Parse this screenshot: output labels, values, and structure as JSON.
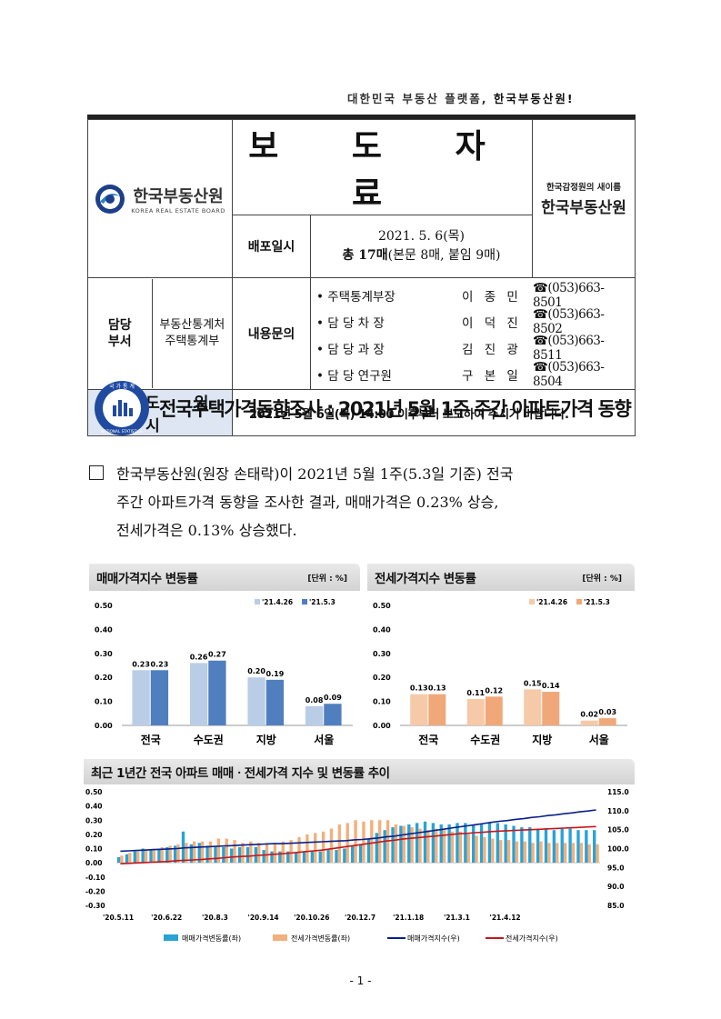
{
  "tagline": {
    "pre": "대한민국 부동산 플랫폼, ",
    "em": "한국부동산원!"
  },
  "header": {
    "logo_name": "한국부동산원",
    "logo_sub": "KOREA REAL ESTATE BOARD",
    "title": "보 도 자 료",
    "dist_label": "배포일시",
    "dist_date": "2021. 5. 6(목)",
    "pages_bold": "총 17매",
    "pages_rest": "(본문 8매, 붙임 9매)",
    "rename_small": "한국감정원의 새이름",
    "rename_big": "한국부동산원",
    "dept_label": "담당\n부서",
    "dept_name": "부동산통계처\n주택통계부",
    "contact_label": "내용문의",
    "contacts": [
      {
        "role": "• 주택통계부장",
        "name": "이 종 민",
        "tel": "☎(053)663-8501"
      },
      {
        "role": "• 담 당 차  장",
        "name": "이 덕 진",
        "tel": "☎(053)663-8502"
      },
      {
        "role": "• 담 당 과  장",
        "name": "김 진 광",
        "tel": "☎(053)663-8511"
      },
      {
        "role": "• 담 당 연구원",
        "name": "구 본 일",
        "tel": "☎(053)663-8504"
      }
    ],
    "release_label": "보 도 일 시",
    "release_text": "2021년 5월 6일(목) 14:00 이후부터 보도하여 주시기 바랍니다."
  },
  "seal_text": {
    "top": "국 가 통 계",
    "bottom": "NATIONAL STATISTICS"
  },
  "headline": "전국주택가격동향조사 : 2021년 5월 1주 주간 아파트가격 동향",
  "body": [
    "한국부동산원(원장 손태락)이 2021년 5월 1주(5.3일 기준) 전국",
    "주간 아파트가격 동향을 조사한 결과, 매매가격은 0.23% 상승,",
    "전세가격은 0.13% 상승했다."
  ],
  "colors": {
    "sale_prev": "#b9cde6",
    "sale_cur": "#4f7fbf",
    "jeonse_prev": "#f6c9a8",
    "jeonse_cur": "#f0a878",
    "sale_index": "#0b1f8a",
    "jeonse_index": "#c4161c",
    "sale_rate": "#29a3d6",
    "jeonse_rate": "#f2b07c"
  },
  "chart_data": [
    {
      "type": "bar",
      "title": "매매가격지수 변동률",
      "unit": "[단위 : %]",
      "categories": [
        "전국",
        "수도권",
        "지방",
        "서울"
      ],
      "series": [
        {
          "name": "'21.4.26",
          "values": [
            0.23,
            0.26,
            0.2,
            0.08
          ]
        },
        {
          "name": "'21.5.3",
          "values": [
            0.23,
            0.27,
            0.19,
            0.09
          ]
        }
      ],
      "ylim": [
        0,
        0.5
      ],
      "yticks": [
        "0.00",
        "0.10",
        "0.20",
        "0.30",
        "0.40",
        "0.50"
      ]
    },
    {
      "type": "bar",
      "title": "전세가격지수 변동률",
      "unit": "[단위 : %]",
      "categories": [
        "전국",
        "수도권",
        "지방",
        "서울"
      ],
      "series": [
        {
          "name": "'21.4.26",
          "values": [
            0.13,
            0.11,
            0.15,
            0.02
          ]
        },
        {
          "name": "'21.5.3",
          "values": [
            0.13,
            0.12,
            0.14,
            0.03
          ]
        }
      ],
      "ylim": [
        0,
        0.5
      ],
      "yticks": [
        "0.00",
        "0.10",
        "0.20",
        "0.30",
        "0.40",
        "0.50"
      ]
    },
    {
      "type": "bar+line",
      "title": "최근 1년간 전국 아파트 매매ㆍ전세가격 지수 및 변동률 추이",
      "x_ticks": [
        "'20.5.11",
        "'20.6.22",
        "'20.8.3",
        "'20.9.14",
        "'20.10.26",
        "'20.12.7",
        "'21.1.18",
        "'21.3.1",
        "'21.4.12"
      ],
      "y_left_ticks": [
        "0.50",
        "0.40",
        "0.30",
        "0.20",
        "0.10",
        "0.00",
        "-0.10",
        "-0.20",
        "-0.30"
      ],
      "y_left_lim": [
        -0.3,
        0.5
      ],
      "y_right_ticks": [
        "115.0",
        "110.0",
        "105.0",
        "100.0",
        "95.0",
        "90.0",
        "85.0"
      ],
      "y_right_lim": [
        85,
        115
      ],
      "series": [
        {
          "name": "매매가격변동률(좌)",
          "kind": "bar",
          "values": [
            0.04,
            0.06,
            0.08,
            0.1,
            0.09,
            0.1,
            0.11,
            0.12,
            0.22,
            0.13,
            0.14,
            0.12,
            0.12,
            0.11,
            0.1,
            0.11,
            0.11,
            0.11,
            0.09,
            0.08,
            0.08,
            0.08,
            0.07,
            0.08,
            0.08,
            0.08,
            0.09,
            0.09,
            0.1,
            0.12,
            0.13,
            0.17,
            0.21,
            0.23,
            0.25,
            0.26,
            0.27,
            0.28,
            0.29,
            0.28,
            0.27,
            0.27,
            0.28,
            0.28,
            0.27,
            0.27,
            0.28,
            0.28,
            0.27,
            0.26,
            0.25,
            0.25,
            0.24,
            0.24,
            0.23,
            0.24,
            0.24,
            0.23,
            0.23,
            0.23
          ]
        },
        {
          "name": "전세가격변동률(좌)",
          "kind": "bar",
          "values": [
            0.05,
            0.07,
            0.08,
            0.09,
            0.1,
            0.11,
            0.12,
            0.13,
            0.14,
            0.15,
            0.15,
            0.15,
            0.17,
            0.17,
            0.16,
            0.14,
            0.15,
            0.14,
            0.14,
            0.14,
            0.15,
            0.16,
            0.18,
            0.2,
            0.21,
            0.22,
            0.24,
            0.27,
            0.28,
            0.3,
            0.29,
            0.3,
            0.3,
            0.3,
            0.27,
            0.26,
            0.25,
            0.24,
            0.23,
            0.24,
            0.23,
            0.22,
            0.22,
            0.2,
            0.19,
            0.18,
            0.17,
            0.16,
            0.16,
            0.15,
            0.15,
            0.14,
            0.15,
            0.14,
            0.14,
            0.14,
            0.14,
            0.14,
            0.13,
            0.13
          ]
        },
        {
          "name": "매매가격지수(우)",
          "kind": "line",
          "values": [
            99.3,
            99.4,
            99.5,
            99.6,
            99.7,
            99.8,
            99.9,
            100.0,
            100.2,
            100.3,
            100.4,
            100.5,
            100.6,
            100.7,
            100.8,
            100.9,
            101.0,
            101.1,
            101.2,
            101.3,
            101.3,
            101.4,
            101.5,
            101.6,
            101.7,
            101.8,
            101.9,
            102.0,
            102.1,
            102.3,
            102.4,
            102.6,
            102.8,
            103.1,
            103.3,
            103.6,
            103.9,
            104.2,
            104.5,
            104.8,
            105.1,
            105.4,
            105.7,
            106.0,
            106.3,
            106.6,
            106.9,
            107.2,
            107.4,
            107.7,
            107.9,
            108.2,
            108.4,
            108.7,
            108.9,
            109.2,
            109.4,
            109.7,
            109.9,
            110.2
          ]
        },
        {
          "name": "전세가격지수(우)",
          "kind": "line",
          "values": [
            96.0,
            96.1,
            96.2,
            96.3,
            96.4,
            96.5,
            96.6,
            96.8,
            96.9,
            97.0,
            97.1,
            97.3,
            97.4,
            97.6,
            97.8,
            97.9,
            98.0,
            98.2,
            98.3,
            98.5,
            98.6,
            98.8,
            99.0,
            99.2,
            99.4,
            99.6,
            99.9,
            100.2,
            100.5,
            100.8,
            101.1,
            101.4,
            101.7,
            102.0,
            102.2,
            102.5,
            102.7,
            102.9,
            103.1,
            103.3,
            103.5,
            103.7,
            103.9,
            104.0,
            104.2,
            104.3,
            104.5,
            104.6,
            104.7,
            104.8,
            104.9,
            105.0,
            105.1,
            105.2,
            105.3,
            105.4,
            105.5,
            105.6,
            105.7,
            105.8
          ]
        }
      ]
    }
  ],
  "page_number": "- 1 -"
}
